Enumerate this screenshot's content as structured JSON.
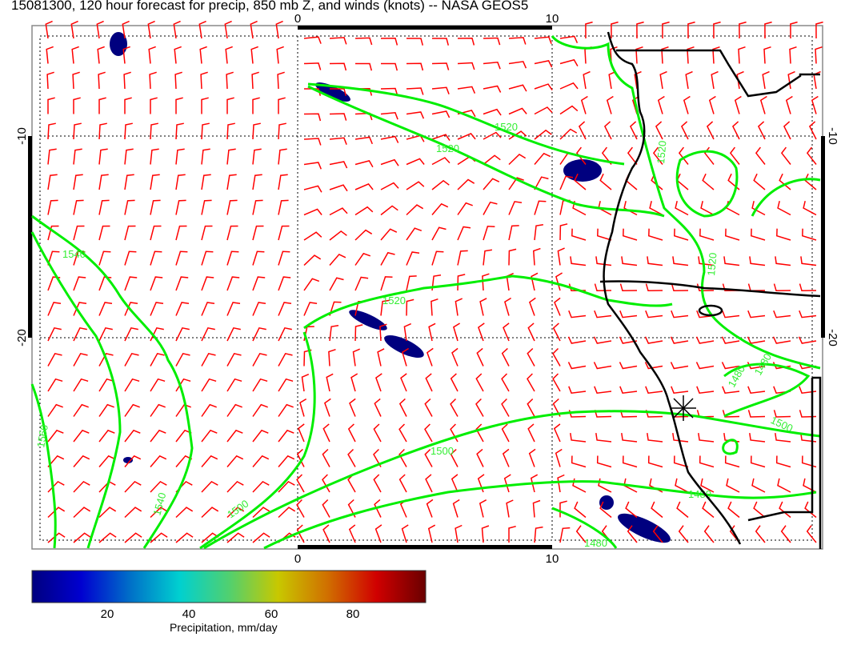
{
  "title": "15081300, 120 hour forecast for precip, 850 mb Z, and winds (knots) -- NASA GEOS5",
  "axes": {
    "x_ticks": [
      "0",
      "10"
    ],
    "y_ticks": [
      "-10",
      "-20"
    ]
  },
  "contour_labels": [
    "1540",
    "1520",
    "1520",
    "1520",
    "1520",
    "1500",
    "1540",
    "1560",
    "1500",
    "1480",
    "1480",
    "1500",
    "1480",
    "1480",
    "1520"
  ],
  "colors": {
    "barbs": "#ff0000",
    "contours": "#00ee00",
    "coast": "#000000",
    "precip": "#00007f"
  },
  "colorbar": {
    "label": "Precipitation, mm/day",
    "ticks": [
      "20",
      "40",
      "60",
      "80"
    ],
    "range": [
      2,
      98
    ],
    "colormap": [
      "#00007f",
      "#0000d0",
      "#0070c8",
      "#00d0d0",
      "#50d070",
      "#c8c800",
      "#d07000",
      "#d00000",
      "#6a0000"
    ]
  }
}
